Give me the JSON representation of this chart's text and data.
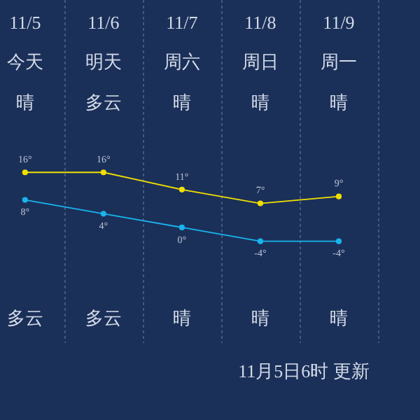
{
  "chart_data": {
    "type": "line",
    "categories": [
      "11/5",
      "11/6",
      "11/7",
      "11/8",
      "11/9"
    ],
    "series": [
      {
        "color": "#f2e000",
        "values": [
          16,
          16,
          11,
          7,
          9
        ],
        "value_labels": [
          "16°",
          "16°",
          "11°",
          "7°",
          "9°"
        ]
      },
      {
        "color": "#19b4ee",
        "values": [
          8,
          4,
          0,
          -4,
          -4
        ],
        "value_labels": [
          "8°",
          "4°",
          "0°",
          "-4°",
          "-4°"
        ]
      }
    ],
    "annotations": [
      "今天",
      "明天",
      "周六",
      "周日",
      "周一",
      "晴",
      "多云",
      "晴",
      "晴",
      "晴",
      "多云",
      "多云",
      "晴",
      "晴",
      "晴",
      "11月5日6时 更新"
    ],
    "grid": "x",
    "legend": false,
    "tick_labels": "x",
    "marker": "circle"
  }
}
